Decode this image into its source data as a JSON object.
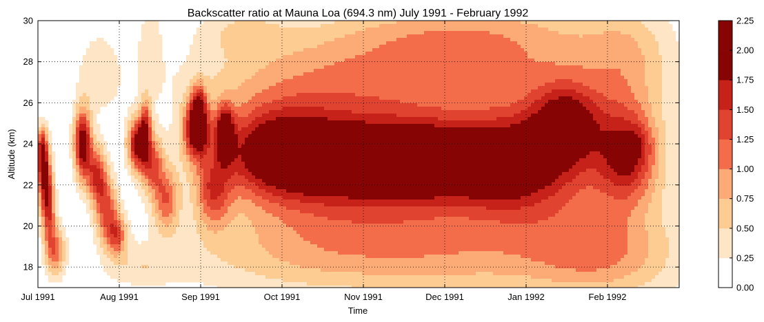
{
  "chart_data": {
    "type": "heatmap",
    "title": "Backscatter ratio at Mauna Loa (694.3 nm) July 1991 - February 1992",
    "xlabel": "Time",
    "ylabel": "Altitude (km)",
    "ylim": [
      17,
      30
    ],
    "y_ticks": [
      "18",
      "20",
      "22",
      "24",
      "26",
      "28",
      "30"
    ],
    "x_ticks": [
      "Jul 1991",
      "Aug 1991",
      "Sep 1991",
      "Oct 1991",
      "Nov 1991",
      "Dec 1991",
      "Jan 1992",
      "Feb 1992"
    ],
    "grid": true,
    "colorbar": {
      "levels": [
        0.0,
        0.25,
        0.5,
        0.75,
        1.0,
        1.25,
        1.5,
        1.75,
        2.0,
        2.25
      ],
      "labels": [
        "0.00",
        "0.25",
        "0.50",
        "0.75",
        "1.00",
        "1.25",
        "1.50",
        "1.75",
        "2.00",
        "2.25"
      ],
      "colors": [
        "#ffffff",
        "#fee5c6",
        "#fdcc93",
        "#fcaa76",
        "#f46d4b",
        "#e0432f",
        "#c62219",
        "#860404",
        "#860404"
      ]
    },
    "features": [
      {
        "x": 0.3,
        "y": 22.4,
        "sx": 0.25,
        "sy": 1.3,
        "amp": 1.55
      },
      {
        "x": 0.55,
        "y": 20.8,
        "sx": 0.22,
        "sy": 1.2,
        "amp": 1.2
      },
      {
        "x": 0.2,
        "y": 23.7,
        "sx": 0.18,
        "sy": 0.8,
        "amp": 1.2
      },
      {
        "x": 0.85,
        "y": 18.8,
        "sx": 0.35,
        "sy": 0.9,
        "amp": 1.1
      },
      {
        "x": 2.2,
        "y": 24.0,
        "sx": 0.3,
        "sy": 1.2,
        "amp": 2.05
      },
      {
        "x": 2.9,
        "y": 22.5,
        "sx": 0.35,
        "sy": 1.0,
        "amp": 1.45
      },
      {
        "x": 3.4,
        "y": 20.7,
        "sx": 0.4,
        "sy": 1.1,
        "amp": 1.25
      },
      {
        "x": 3.9,
        "y": 19.5,
        "sx": 0.35,
        "sy": 0.7,
        "amp": 1.05
      },
      {
        "x": 4.9,
        "y": 24.0,
        "sx": 0.35,
        "sy": 0.9,
        "amp": 1.85
      },
      {
        "x": 5.3,
        "y": 25.0,
        "sx": 0.2,
        "sy": 0.9,
        "amp": 1.1
      },
      {
        "x": 5.6,
        "y": 23.0,
        "sx": 0.4,
        "sy": 1.0,
        "amp": 1.2
      },
      {
        "x": 6.3,
        "y": 21.3,
        "sx": 0.45,
        "sy": 1.1,
        "amp": 1.1
      },
      {
        "x": 7.8,
        "y": 24.7,
        "sx": 0.45,
        "sy": 1.0,
        "amp": 1.9
      },
      {
        "x": 7.9,
        "y": 26.0,
        "sx": 0.25,
        "sy": 0.7,
        "amp": 1.0
      },
      {
        "x": 9.2,
        "y": 24.5,
        "sx": 0.3,
        "sy": 0.9,
        "amp": 1.7
      },
      {
        "x": 8.6,
        "y": 21.6,
        "sx": 0.6,
        "sy": 1.2,
        "amp": 1.05
      },
      {
        "x": 11.5,
        "y": 23.7,
        "sx": 2.0,
        "sy": 1.5,
        "amp": 1.25
      },
      {
        "x": 13.0,
        "y": 23.0,
        "sx": 3.0,
        "sy": 2.2,
        "amp": 0.55
      },
      {
        "x": 16.0,
        "y": 23.4,
        "sx": 3.5,
        "sy": 1.4,
        "amp": 1.05
      },
      {
        "x": 17.0,
        "y": 23.2,
        "sx": 1.0,
        "sy": 0.7,
        "amp": 0.5
      },
      {
        "x": 15.5,
        "y": 21.8,
        "sx": 4.0,
        "sy": 2.0,
        "amp": 0.5
      },
      {
        "x": 19.5,
        "y": 23.2,
        "sx": 1.5,
        "sy": 0.9,
        "amp": 0.5
      },
      {
        "x": 20.0,
        "y": 23.2,
        "sx": 3.5,
        "sy": 1.5,
        "amp": 1.0
      },
      {
        "x": 20.5,
        "y": 22.0,
        "sx": 4.0,
        "sy": 2.2,
        "amp": 0.45
      },
      {
        "x": 23.2,
        "y": 23.0,
        "sx": 1.8,
        "sy": 1.7,
        "amp": 1.0
      },
      {
        "x": 26.0,
        "y": 25.0,
        "sx": 1.2,
        "sy": 1.3,
        "amp": 1.3
      },
      {
        "x": 25.5,
        "y": 23.0,
        "sx": 2.0,
        "sy": 2.8,
        "amp": 0.5
      },
      {
        "x": 29.0,
        "y": 23.5,
        "sx": 1.0,
        "sy": 1.6,
        "amp": 1.3
      },
      {
        "x": 28.5,
        "y": 22.5,
        "sx": 2.2,
        "sy": 3.0,
        "amp": 0.45
      },
      {
        "x": 29.6,
        "y": 24.0,
        "sx": 0.4,
        "sy": 0.6,
        "amp": 0.25
      },
      {
        "x": 3.0,
        "y": 27.5,
        "sx": 0.8,
        "sy": 1.5,
        "amp": 0.4
      },
      {
        "x": 5.5,
        "y": 28.8,
        "sx": 0.4,
        "sy": 1.5,
        "amp": 0.4
      },
      {
        "x": 13.0,
        "y": 27.0,
        "sx": 4.5,
        "sy": 1.6,
        "amp": 0.55
      },
      {
        "x": 18.0,
        "y": 27.5,
        "sx": 4.5,
        "sy": 2.0,
        "amp": 0.55
      },
      {
        "x": 24.0,
        "y": 28.0,
        "sx": 4.0,
        "sy": 2.0,
        "amp": 0.55
      },
      {
        "x": 29.0,
        "y": 28.2,
        "sx": 1.5,
        "sy": 2.0,
        "amp": 0.5
      },
      {
        "x": 10.0,
        "y": 29.5,
        "sx": 1.5,
        "sy": 0.8,
        "amp": 0.4
      },
      {
        "x": 20.0,
        "y": 29.5,
        "sx": 4.5,
        "sy": 1.0,
        "amp": 0.4
      },
      {
        "x": 5.0,
        "y": 18.0,
        "sx": 1.2,
        "sy": 0.7,
        "amp": 0.35
      },
      {
        "x": 13.0,
        "y": 18.6,
        "sx": 5.0,
        "sy": 1.5,
        "amp": 0.55
      },
      {
        "x": 22.0,
        "y": 18.5,
        "sx": 5.0,
        "sy": 1.6,
        "amp": 0.6
      },
      {
        "x": 28.0,
        "y": 18.5,
        "sx": 2.5,
        "sy": 1.5,
        "amp": 0.55
      }
    ]
  }
}
